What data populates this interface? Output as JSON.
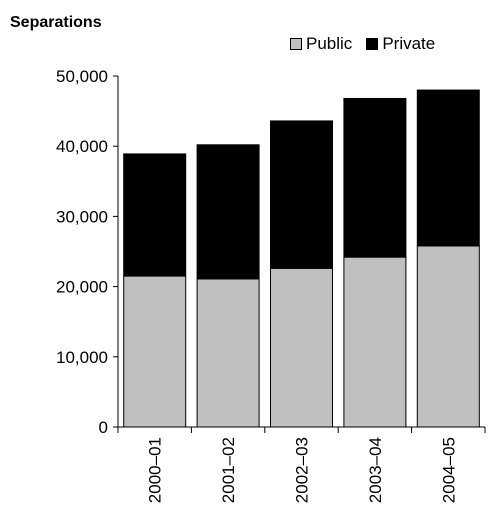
{
  "chart_data": {
    "type": "bar",
    "stacked": true,
    "ylabel": "Separations",
    "categories": [
      "2000–01",
      "2001–02",
      "2002–03",
      "2003–04",
      "2004–05"
    ],
    "series": [
      {
        "name": "Public",
        "color": "#c0c0c0",
        "values": [
          21500,
          21100,
          22600,
          24200,
          25800
        ]
      },
      {
        "name": "Private",
        "color": "#000000",
        "values": [
          17400,
          19100,
          21000,
          22600,
          22200
        ]
      }
    ],
    "ylim": [
      0,
      50000
    ],
    "yticks": [
      "0",
      "10,000",
      "20,000",
      "30,000",
      "40,000",
      "50,000"
    ],
    "legend_position": "top-right",
    "grid": false
  }
}
